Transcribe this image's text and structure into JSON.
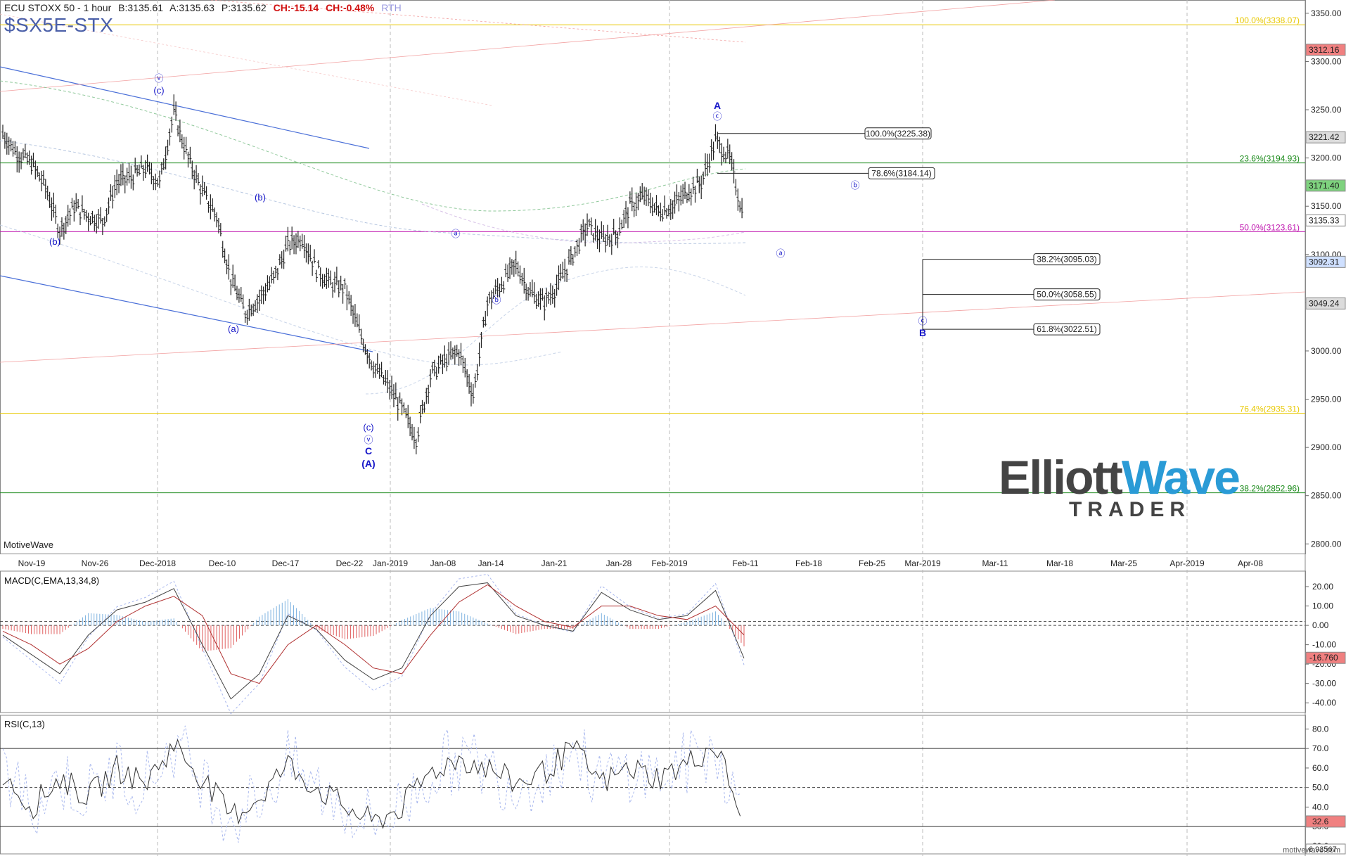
{
  "header": {
    "instrument": "ECU STOXX 50 - 1 hour",
    "bid": "B:3135.61",
    "ask": "A:3135.63",
    "price": "P:3135.62",
    "change": "CH:-15.14",
    "change_pct": "CH:-0.48%",
    "session": "RTH",
    "symbol": "$SX5E-STX"
  },
  "footer": {
    "source": "MotiveWave",
    "watermark": "motivewave.com"
  },
  "logo": {
    "line1_a": "Elliott",
    "line1_b": "Wave",
    "line2": "TRADER"
  },
  "colors": {
    "price_bar": "#222222",
    "wave_label": "#1515c8",
    "fib_green": "#1a8a1a",
    "fib_magenta": "#c01ab0",
    "fib_yellow": "#e8c800",
    "channel_blue": "#4a6fd8",
    "macd_pos": "#7fb3e0",
    "macd_neg": "#e06060",
    "badge_green": "#7ed27e",
    "badge_red": "#f08080"
  },
  "chart_data": [
    {
      "type": "line",
      "name": "price",
      "x_labels": [
        "Nov-19",
        "Nov-26",
        "Dec-2018",
        "Dec-10",
        "Dec-17",
        "Dec-22",
        "Jan-2019",
        "Jan-08",
        "Jan-14",
        "Jan-21",
        "Jan-28",
        "Feb-2019",
        "Feb-11",
        "Feb-18",
        "Feb-25",
        "Mar-2019",
        "Mar-11",
        "Mar-18",
        "Mar-25",
        "Apr-2019",
        "Apr-08"
      ],
      "y_ticks": [
        "3350.00",
        "3300.00",
        "3250.00",
        "3200.00",
        "3150.00",
        "3100.00",
        "3050.00",
        "3000.00",
        "2950.00",
        "2900.00",
        "2850.00",
        "2800.00"
      ],
      "ylim": [
        2790,
        3355
      ],
      "x": [
        0,
        3,
        6,
        9,
        12,
        15,
        18,
        21,
        24,
        27,
        30,
        33,
        36,
        39,
        42,
        45,
        48,
        51,
        54,
        57,
        60,
        63,
        66,
        69,
        72,
        75,
        78,
        81,
        84,
        87,
        90,
        93,
        96,
        99,
        102,
        105,
        108,
        111,
        114,
        117,
        120,
        123,
        126,
        129,
        132,
        135,
        138,
        141,
        144,
        147,
        150,
        153,
        156
      ],
      "y": [
        3225,
        3205,
        3195,
        3170,
        3125,
        3150,
        3140,
        3135,
        3175,
        3180,
        3190,
        3175,
        3247,
        3200,
        3165,
        3140,
        3075,
        3040,
        3055,
        3075,
        3110,
        3118,
        3085,
        3070,
        3065,
        3020,
        2985,
        2965,
        2940,
        2910,
        2975,
        2990,
        3000,
        2955,
        3050,
        3070,
        3090,
        3060,
        3050,
        3070,
        3100,
        3130,
        3115,
        3120,
        3150,
        3160,
        3145,
        3150,
        3165,
        3175,
        3218,
        3200,
        3135
      ],
      "fib_levels": [
        {
          "label": "100.0%(3338.07)",
          "value": 3338.07,
          "color": "#e8c800"
        },
        {
          "label": "23.6%(3194.93)",
          "value": 3194.93,
          "color": "#1a8a1a"
        },
        {
          "label": "50.0%(3123.61)",
          "value": 3123.61,
          "color": "#c01ab0"
        },
        {
          "label": "76.4%(2935.31)",
          "value": 2935.31,
          "color": "#e8c800"
        },
        {
          "label": "38.2%(2852.96)",
          "value": 2852.96,
          "color": "#1a8a1a"
        }
      ],
      "retracements": [
        {
          "label": "100.0%(3225.38)",
          "value": 3225.38
        },
        {
          "label": "78.6%(3184.14)",
          "value": 3184.14
        },
        {
          "label": "38.2%(3095.03)",
          "value": 3095.03
        },
        {
          "label": "50.0%(3058.55)",
          "value": 3058.55
        },
        {
          "label": "61.8%(3022.51)",
          "value": 3022.51
        }
      ],
      "price_badges": [
        {
          "value": "3312.16",
          "bg": "#f08080"
        },
        {
          "value": "3221.42",
          "bg": "#dcdcdc"
        },
        {
          "value": "3171.40",
          "bg": "#7ed27e"
        },
        {
          "value": "3135.33",
          "bg": "#ffffff"
        },
        {
          "value": "3092.31",
          "bg": "#cfe0ff"
        },
        {
          "value": "3049.24",
          "bg": "#dcdcdc"
        }
      ],
      "wave_labels": [
        "ⓥ",
        "(c)",
        "(b)",
        "(b)",
        "(a)",
        "(c)",
        "ⓥ",
        "C",
        "(A)",
        "ⓐ",
        "ⓑ",
        "A",
        "ⓒ",
        "ⓑ",
        "ⓐ",
        "ⓒ",
        "B"
      ]
    },
    {
      "type": "line",
      "name": "MACD(C,EMA,13,34,8)",
      "y_ticks": [
        "20.00",
        "10.00",
        "0.00",
        "-10.00",
        "-20.00",
        "-30.00",
        "-40.00"
      ],
      "ylim": [
        -45,
        28
      ],
      "last_value": "-16.760",
      "x": [
        0,
        6,
        12,
        18,
        24,
        30,
        36,
        42,
        48,
        54,
        60,
        66,
        72,
        78,
        84,
        90,
        96,
        102,
        108,
        114,
        120,
        126,
        132,
        138,
        144,
        150,
        156
      ],
      "macd": [
        -5,
        -15,
        -25,
        -5,
        8,
        12,
        19,
        -10,
        -38,
        -25,
        5,
        -2,
        -18,
        -28,
        -22,
        5,
        20,
        22,
        5,
        0,
        -3,
        17,
        8,
        3,
        5,
        18,
        -17
      ],
      "signal": [
        -3,
        -10,
        -20,
        -12,
        2,
        10,
        15,
        5,
        -25,
        -30,
        -10,
        0,
        -10,
        -22,
        -25,
        -5,
        12,
        21,
        10,
        2,
        -1,
        10,
        10,
        5,
        3,
        10,
        -5
      ]
    },
    {
      "type": "line",
      "name": "RSI(C,13)",
      "y_ticks": [
        "80.0",
        "70.0",
        "60.0",
        "50.0",
        "40.0",
        "30.0",
        "20.0"
      ],
      "ylim": [
        16,
        87
      ],
      "levels": [
        70,
        50,
        30
      ],
      "last_value": "32.6",
      "bottom_value": "6.93567",
      "x": [
        0,
        6,
        12,
        18,
        24,
        30,
        36,
        42,
        48,
        54,
        60,
        66,
        72,
        78,
        84,
        90,
        96,
        102,
        108,
        114,
        120,
        126,
        132,
        138,
        144,
        150,
        156
      ],
      "rsi": [
        58,
        40,
        55,
        45,
        60,
        52,
        72,
        55,
        35,
        45,
        62,
        50,
        40,
        32,
        40,
        58,
        65,
        60,
        52,
        58,
        70,
        52,
        60,
        55,
        62,
        72,
        32
      ]
    }
  ]
}
